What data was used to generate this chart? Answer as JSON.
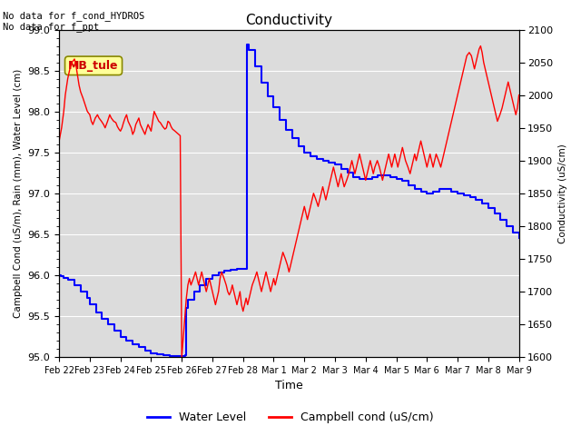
{
  "title": "Conductivity",
  "left_ylabel": "Campbell Cond (uS/m), Rain (mm), Water Level (cm)",
  "right_ylabel": "Conductivity (uS/cm)",
  "xlabel": "Time",
  "left_ylim": [
    95.0,
    99.0
  ],
  "right_ylim": [
    1600,
    2100
  ],
  "annotation_text": "No data for f_cond_HYDROS\nNo data for f_ppt",
  "legend_labels": [
    "Water Level",
    "Campbell cond (uS/cm)"
  ],
  "box_label": "MB_tule",
  "box_label_color": "#cc0000",
  "box_bg_color": "#ffff99",
  "background_color": "#dcdcdc",
  "xtick_labels": [
    "Feb 22",
    "Feb 23",
    "Feb 24",
    "Feb 25",
    "Feb 26",
    "Feb 27",
    "Feb 28",
    "Mar 1",
    "Mar 2",
    "Mar 3",
    "Mar 4",
    "Mar 5",
    "Mar 6",
    "Mar 7",
    "Mar 8",
    "Mar 9"
  ],
  "water_level_x": [
    0.0,
    0.05,
    0.15,
    0.3,
    0.5,
    0.7,
    0.9,
    1.0,
    1.2,
    1.4,
    1.6,
    1.8,
    2.0,
    2.2,
    2.4,
    2.6,
    2.8,
    3.0,
    3.2,
    3.4,
    3.6,
    3.8,
    4.0,
    4.1,
    4.12,
    4.14,
    4.2,
    4.4,
    4.6,
    4.8,
    5.0,
    5.2,
    5.4,
    5.6,
    5.8,
    6.0,
    6.1,
    6.12,
    6.13,
    6.2,
    6.4,
    6.6,
    6.8,
    7.0,
    7.2,
    7.4,
    7.6,
    7.8,
    8.0,
    8.2,
    8.4,
    8.6,
    8.8,
    9.0,
    9.2,
    9.4,
    9.6,
    9.8,
    10.0,
    10.2,
    10.4,
    10.6,
    10.8,
    11.0,
    11.2,
    11.4,
    11.6,
    11.8,
    12.0,
    12.2,
    12.4,
    12.6,
    12.8,
    13.0,
    13.2,
    13.4,
    13.6,
    13.8,
    14.0,
    14.2,
    14.4,
    14.6,
    14.8,
    15.0
  ],
  "water_level_y": [
    96.0,
    95.99,
    95.97,
    95.94,
    95.88,
    95.8,
    95.72,
    95.65,
    95.55,
    95.47,
    95.4,
    95.32,
    95.25,
    95.2,
    95.16,
    95.12,
    95.08,
    95.05,
    95.03,
    95.02,
    95.01,
    95.01,
    95.01,
    95.01,
    95.02,
    95.6,
    95.7,
    95.8,
    95.88,
    95.95,
    96.0,
    96.03,
    96.05,
    96.07,
    96.08,
    96.08,
    96.08,
    96.09,
    98.82,
    98.75,
    98.55,
    98.35,
    98.18,
    98.05,
    97.9,
    97.78,
    97.68,
    97.58,
    97.5,
    97.45,
    97.42,
    97.4,
    97.38,
    97.35,
    97.3,
    97.25,
    97.2,
    97.18,
    97.18,
    97.2,
    97.22,
    97.22,
    97.2,
    97.18,
    97.15,
    97.1,
    97.05,
    97.02,
    97.0,
    97.02,
    97.05,
    97.05,
    97.02,
    97.0,
    96.98,
    96.95,
    96.92,
    96.88,
    96.82,
    96.75,
    96.68,
    96.6,
    96.52,
    96.45
  ],
  "cond_x": [
    0.0,
    0.08,
    0.15,
    0.2,
    0.28,
    0.35,
    0.42,
    0.5,
    0.55,
    0.6,
    0.65,
    0.7,
    0.78,
    0.85,
    0.92,
    1.0,
    1.05,
    1.1,
    1.18,
    1.25,
    1.3,
    1.38,
    1.45,
    1.5,
    1.58,
    1.65,
    1.7,
    1.78,
    1.85,
    1.9,
    1.95,
    2.0,
    2.05,
    2.1,
    2.15,
    2.2,
    2.25,
    2.3,
    2.35,
    2.4,
    2.45,
    2.5,
    2.55,
    2.6,
    2.65,
    2.7,
    2.75,
    2.8,
    2.85,
    2.9,
    2.95,
    3.0,
    3.05,
    3.1,
    3.15,
    3.2,
    3.25,
    3.3,
    3.38,
    3.45,
    3.5,
    3.55,
    3.6,
    3.65,
    3.7,
    3.78,
    3.85,
    3.9,
    3.95,
    4.0,
    4.05,
    4.1,
    4.15,
    4.2,
    4.25,
    4.3,
    4.38,
    4.45,
    4.5,
    4.55,
    4.6,
    4.65,
    4.7,
    4.75,
    4.8,
    4.85,
    4.9,
    4.95,
    5.0,
    5.05,
    5.1,
    5.15,
    5.2,
    5.25,
    5.3,
    5.38,
    5.45,
    5.5,
    5.55,
    5.6,
    5.65,
    5.7,
    5.75,
    5.8,
    5.85,
    5.9,
    5.95,
    6.0,
    6.05,
    6.1,
    6.15,
    6.2,
    6.25,
    6.3,
    6.38,
    6.45,
    6.5,
    6.55,
    6.6,
    6.65,
    6.7,
    6.75,
    6.8,
    6.85,
    6.9,
    6.95,
    7.0,
    7.05,
    7.1,
    7.15,
    7.2,
    7.25,
    7.3,
    7.38,
    7.45,
    7.5,
    7.55,
    7.6,
    7.65,
    7.7,
    7.75,
    7.8,
    7.85,
    7.9,
    7.95,
    8.0,
    8.05,
    8.1,
    8.15,
    8.2,
    8.25,
    8.3,
    8.38,
    8.45,
    8.5,
    8.55,
    8.6,
    8.65,
    8.7,
    8.75,
    8.8,
    8.85,
    8.9,
    8.95,
    9.0,
    9.05,
    9.1,
    9.15,
    9.2,
    9.25,
    9.3,
    9.38,
    9.45,
    9.5,
    9.55,
    9.6,
    9.65,
    9.7,
    9.75,
    9.8,
    9.85,
    9.9,
    9.95,
    10.0,
    10.05,
    10.1,
    10.15,
    10.2,
    10.25,
    10.3,
    10.38,
    10.45,
    10.5,
    10.55,
    10.6,
    10.65,
    10.7,
    10.75,
    10.8,
    10.85,
    10.9,
    10.95,
    11.0,
    11.05,
    11.1,
    11.15,
    11.2,
    11.25,
    11.3,
    11.38,
    11.45,
    11.5,
    11.55,
    11.6,
    11.65,
    11.7,
    11.75,
    11.8,
    11.85,
    11.9,
    11.95,
    12.0,
    12.05,
    12.1,
    12.15,
    12.2,
    12.25,
    12.3,
    12.38,
    12.45,
    12.5,
    12.55,
    12.6,
    12.65,
    12.7,
    12.75,
    12.8,
    12.85,
    12.9,
    12.95,
    13.0,
    13.05,
    13.1,
    13.15,
    13.2,
    13.25,
    13.3,
    13.38,
    13.45,
    13.5,
    13.55,
    13.6,
    13.65,
    13.7,
    13.75,
    13.8,
    13.85,
    13.9,
    13.95,
    14.0,
    14.05,
    14.1,
    14.15,
    14.2,
    14.25,
    14.3,
    14.38,
    14.45,
    14.5,
    14.55,
    14.6,
    14.65,
    14.7,
    14.75,
    14.8,
    14.85,
    14.9,
    14.95,
    15.0
  ],
  "cond_y": [
    1930,
    1950,
    1975,
    2000,
    2025,
    2040,
    2050,
    2055,
    2045,
    2030,
    2015,
    2005,
    1995,
    1985,
    1975,
    1970,
    1960,
    1955,
    1965,
    1970,
    1965,
    1960,
    1955,
    1950,
    1960,
    1970,
    1965,
    1960,
    1958,
    1952,
    1948,
    1945,
    1950,
    1958,
    1965,
    1970,
    1960,
    1955,
    1950,
    1940,
    1945,
    1955,
    1960,
    1965,
    1955,
    1950,
    1945,
    1940,
    1948,
    1955,
    1950,
    1945,
    1960,
    1975,
    1970,
    1965,
    1960,
    1958,
    1952,
    1948,
    1950,
    1960,
    1958,
    1952,
    1948,
    1945,
    1942,
    1940,
    1938,
    1600,
    1630,
    1660,
    1690,
    1710,
    1720,
    1710,
    1720,
    1730,
    1720,
    1710,
    1720,
    1730,
    1720,
    1710,
    1700,
    1710,
    1720,
    1710,
    1700,
    1690,
    1680,
    1690,
    1700,
    1720,
    1730,
    1720,
    1710,
    1700,
    1695,
    1700,
    1710,
    1700,
    1690,
    1680,
    1690,
    1700,
    1680,
    1670,
    1680,
    1690,
    1680,
    1690,
    1700,
    1710,
    1720,
    1730,
    1720,
    1710,
    1700,
    1710,
    1720,
    1730,
    1720,
    1710,
    1700,
    1710,
    1720,
    1710,
    1720,
    1730,
    1740,
    1750,
    1760,
    1750,
    1740,
    1730,
    1740,
    1750,
    1760,
    1770,
    1780,
    1790,
    1800,
    1810,
    1820,
    1830,
    1820,
    1810,
    1820,
    1830,
    1840,
    1850,
    1840,
    1830,
    1840,
    1850,
    1860,
    1850,
    1840,
    1850,
    1860,
    1870,
    1880,
    1890,
    1880,
    1870,
    1860,
    1870,
    1880,
    1870,
    1860,
    1870,
    1880,
    1890,
    1900,
    1890,
    1880,
    1890,
    1900,
    1910,
    1900,
    1890,
    1880,
    1870,
    1880,
    1890,
    1900,
    1890,
    1880,
    1890,
    1900,
    1890,
    1880,
    1870,
    1880,
    1890,
    1900,
    1910,
    1900,
    1890,
    1900,
    1910,
    1900,
    1890,
    1900,
    1910,
    1920,
    1910,
    1900,
    1890,
    1880,
    1890,
    1900,
    1910,
    1900,
    1910,
    1920,
    1930,
    1920,
    1910,
    1900,
    1890,
    1900,
    1910,
    1900,
    1890,
    1900,
    1910,
    1900,
    1890,
    1900,
    1910,
    1920,
    1930,
    1940,
    1950,
    1960,
    1970,
    1980,
    1990,
    2000,
    2010,
    2020,
    2030,
    2040,
    2050,
    2060,
    2065,
    2060,
    2050,
    2040,
    2050,
    2060,
    2070,
    2075,
    2065,
    2050,
    2040,
    2030,
    2020,
    2010,
    2000,
    1990,
    1980,
    1970,
    1960,
    1970,
    1980,
    1990,
    2000,
    2010,
    2020,
    2010,
    2000,
    1990,
    1980,
    1970,
    1980,
    2000
  ]
}
